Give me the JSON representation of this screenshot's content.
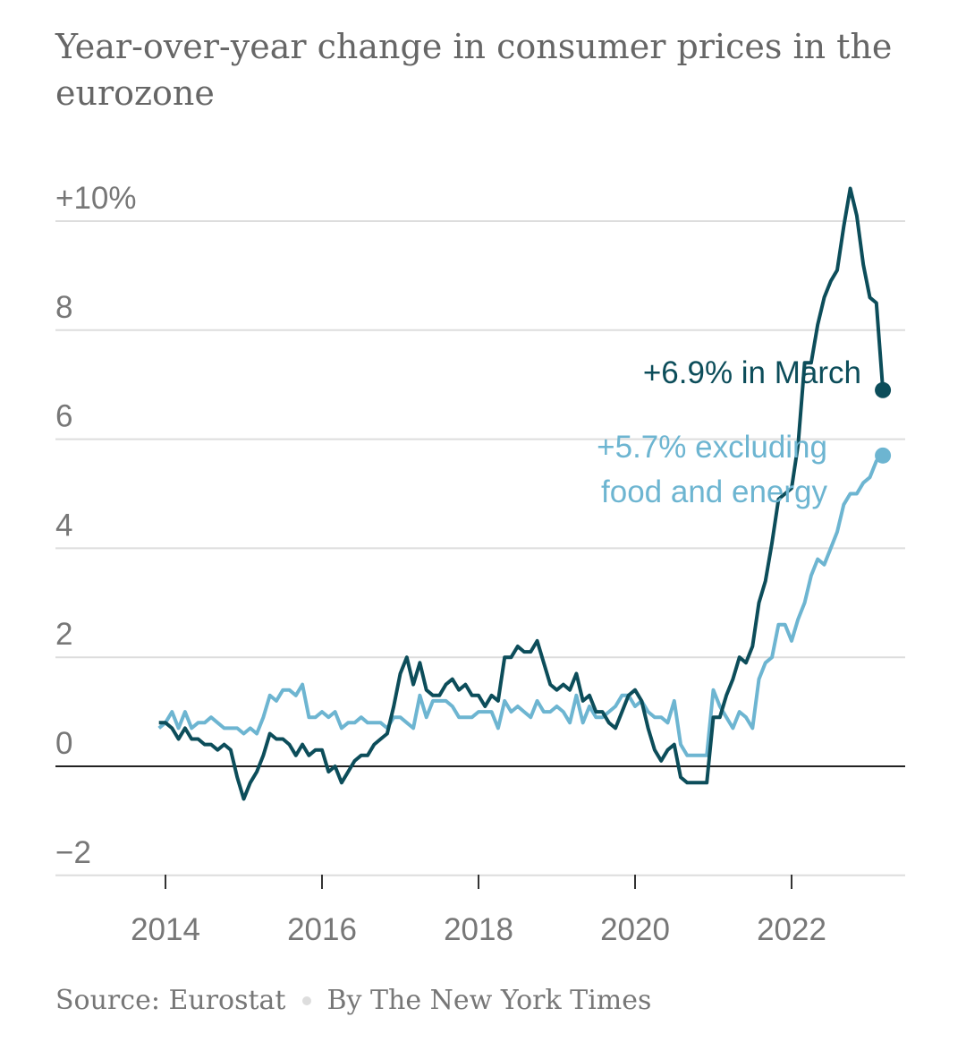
{
  "title": "Year-over-year change in consumer prices in the eurozone",
  "footer": {
    "source": "Source: Eurostat",
    "byline": "By The New York Times"
  },
  "colors": {
    "headline": "#0c4d5a",
    "core": "#6db5d1",
    "grid": "#dddddd",
    "zero": "#222222"
  },
  "chart_data": {
    "type": "line",
    "title": "Year-over-year change in consumer prices in the eurozone",
    "ylim": [
      -2.3,
      10.8
    ],
    "yticks": [
      -2,
      0,
      2,
      4,
      6,
      8,
      10
    ],
    "ytick_labels": [
      "−2",
      "0",
      "2",
      "4",
      "6",
      "8",
      "+10%"
    ],
    "xticks": [
      "2014",
      "2016",
      "2018",
      "2020",
      "2022"
    ],
    "grid": true,
    "x": [
      "2013-12",
      "2014-01",
      "2014-02",
      "2014-03",
      "2014-04",
      "2014-05",
      "2014-06",
      "2014-07",
      "2014-08",
      "2014-09",
      "2014-10",
      "2014-11",
      "2014-12",
      "2015-01",
      "2015-02",
      "2015-03",
      "2015-04",
      "2015-05",
      "2015-06",
      "2015-07",
      "2015-08",
      "2015-09",
      "2015-10",
      "2015-11",
      "2015-12",
      "2016-01",
      "2016-02",
      "2016-03",
      "2016-04",
      "2016-05",
      "2016-06",
      "2016-07",
      "2016-08",
      "2016-09",
      "2016-10",
      "2016-11",
      "2016-12",
      "2017-01",
      "2017-02",
      "2017-03",
      "2017-04",
      "2017-05",
      "2017-06",
      "2017-07",
      "2017-08",
      "2017-09",
      "2017-10",
      "2017-11",
      "2017-12",
      "2018-01",
      "2018-02",
      "2018-03",
      "2018-04",
      "2018-05",
      "2018-06",
      "2018-07",
      "2018-08",
      "2018-09",
      "2018-10",
      "2018-11",
      "2018-12",
      "2019-01",
      "2019-02",
      "2019-03",
      "2019-04",
      "2019-05",
      "2019-06",
      "2019-07",
      "2019-08",
      "2019-09",
      "2019-10",
      "2019-11",
      "2019-12",
      "2020-01",
      "2020-02",
      "2020-03",
      "2020-04",
      "2020-05",
      "2020-06",
      "2020-07",
      "2020-08",
      "2020-09",
      "2020-10",
      "2020-11",
      "2020-12",
      "2021-01",
      "2021-02",
      "2021-03",
      "2021-04",
      "2021-05",
      "2021-06",
      "2021-07",
      "2021-08",
      "2021-09",
      "2021-10",
      "2021-11",
      "2021-12",
      "2022-01",
      "2022-02",
      "2022-03",
      "2022-04",
      "2022-05",
      "2022-06",
      "2022-07",
      "2022-08",
      "2022-09",
      "2022-10",
      "2022-11",
      "2022-12",
      "2023-01",
      "2023-02",
      "2023-03"
    ],
    "series": [
      {
        "key": "headline",
        "label": "+6.9% in March",
        "values": [
          0.8,
          0.8,
          0.7,
          0.5,
          0.7,
          0.5,
          0.5,
          0.4,
          0.4,
          0.3,
          0.4,
          0.3,
          -0.2,
          -0.6,
          -0.3,
          -0.1,
          0.2,
          0.6,
          0.5,
          0.5,
          0.4,
          0.2,
          0.4,
          0.2,
          0.3,
          0.3,
          -0.1,
          0.0,
          -0.3,
          -0.1,
          0.1,
          0.2,
          0.2,
          0.4,
          0.5,
          0.6,
          1.1,
          1.7,
          2.0,
          1.5,
          1.9,
          1.4,
          1.3,
          1.3,
          1.5,
          1.6,
          1.4,
          1.5,
          1.3,
          1.3,
          1.1,
          1.3,
          1.2,
          2.0,
          2.0,
          2.2,
          2.1,
          2.1,
          2.3,
          1.9,
          1.5,
          1.4,
          1.5,
          1.4,
          1.7,
          1.2,
          1.3,
          1.0,
          1.0,
          0.8,
          0.7,
          1.0,
          1.3,
          1.4,
          1.2,
          0.7,
          0.3,
          0.1,
          0.3,
          0.4,
          -0.2,
          -0.3,
          -0.3,
          -0.3,
          -0.3,
          0.9,
          0.9,
          1.3,
          1.6,
          2.0,
          1.9,
          2.2,
          3.0,
          3.4,
          4.1,
          4.9,
          5.0,
          5.1,
          5.9,
          7.4,
          7.4,
          8.1,
          8.6,
          8.9,
          9.1,
          9.9,
          10.6,
          10.1,
          9.2,
          8.6,
          8.5,
          6.9
        ]
      },
      {
        "key": "core",
        "label": "+5.7% excluding food and energy",
        "label_lines": [
          "+5.7% excluding",
          "food and energy"
        ],
        "values": [
          0.7,
          0.8,
          1.0,
          0.7,
          1.0,
          0.7,
          0.8,
          0.8,
          0.9,
          0.8,
          0.7,
          0.7,
          0.7,
          0.6,
          0.7,
          0.6,
          0.9,
          1.3,
          1.2,
          1.4,
          1.4,
          1.3,
          1.5,
          0.9,
          0.9,
          1.0,
          0.9,
          1.0,
          0.7,
          0.8,
          0.8,
          0.9,
          0.8,
          0.8,
          0.8,
          0.7,
          0.9,
          0.9,
          0.8,
          0.7,
          1.3,
          0.9,
          1.2,
          1.2,
          1.2,
          1.1,
          0.9,
          0.9,
          0.9,
          1.0,
          1.0,
          1.0,
          0.7,
          1.2,
          1.0,
          1.1,
          1.0,
          0.9,
          1.2,
          1.0,
          1.0,
          1.1,
          1.0,
          0.8,
          1.3,
          0.8,
          1.1,
          0.9,
          0.9,
          1.0,
          1.1,
          1.3,
          1.3,
          1.1,
          1.2,
          1.0,
          0.9,
          0.9,
          0.8,
          1.2,
          0.4,
          0.2,
          0.2,
          0.2,
          0.2,
          1.4,
          1.1,
          0.9,
          0.7,
          1.0,
          0.9,
          0.7,
          1.6,
          1.9,
          2.0,
          2.6,
          2.6,
          2.3,
          2.7,
          3.0,
          3.5,
          3.8,
          3.7,
          4.0,
          4.3,
          4.8,
          5.0,
          5.0,
          5.2,
          5.3,
          5.6,
          5.7
        ]
      }
    ]
  }
}
